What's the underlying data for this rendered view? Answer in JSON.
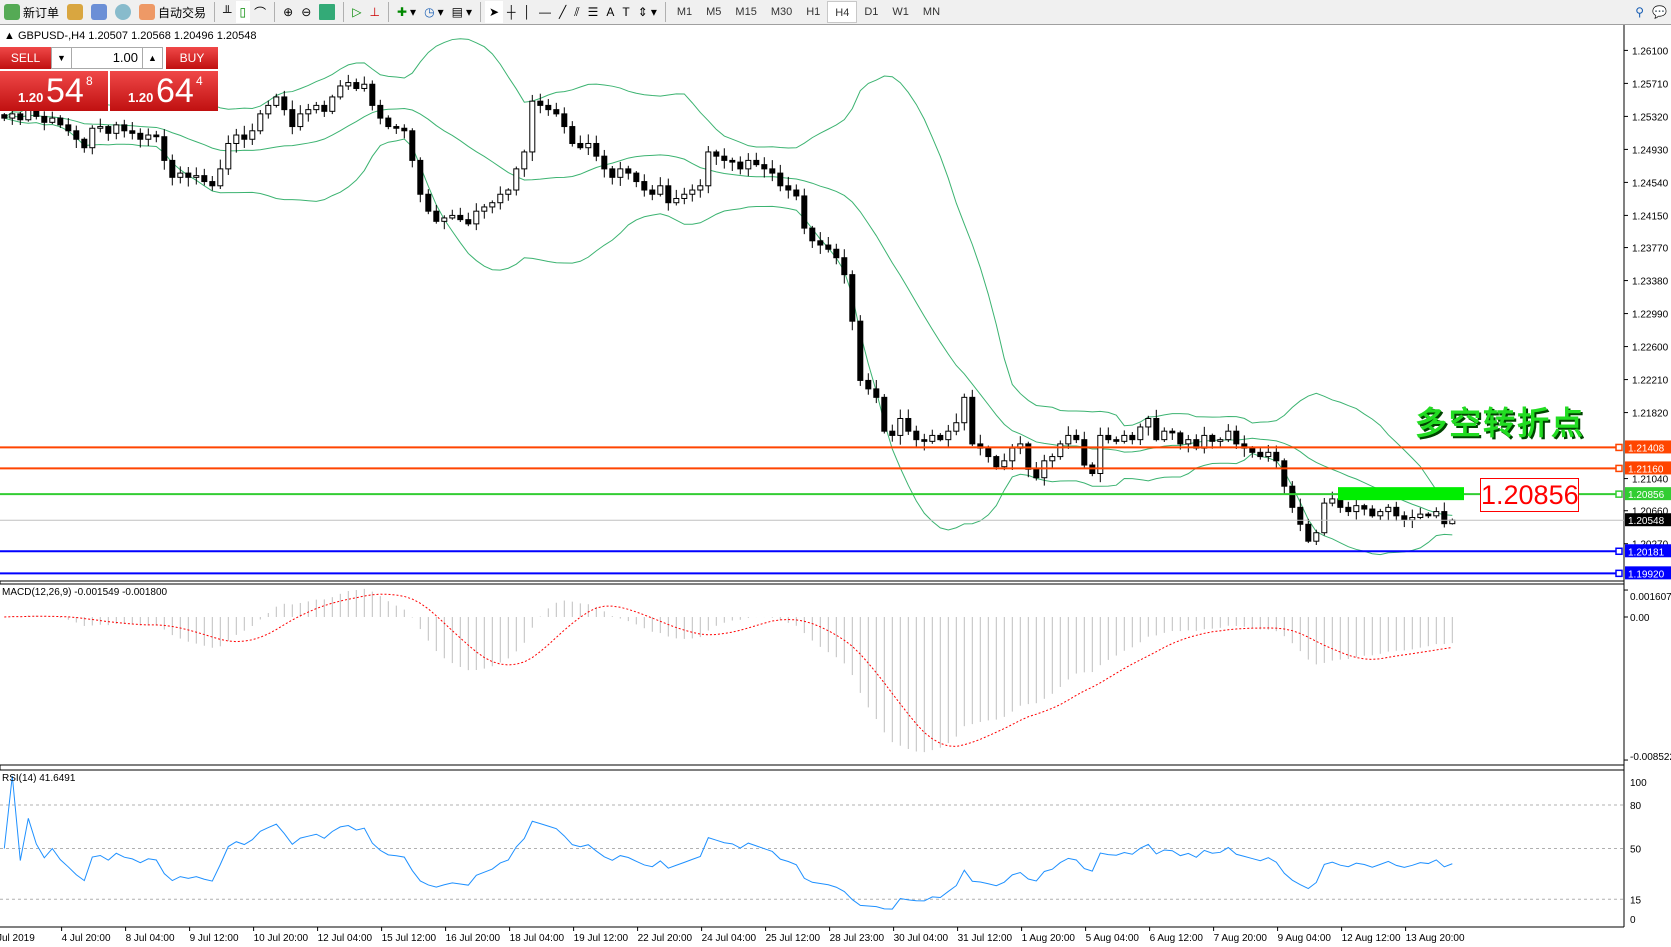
{
  "toolbar": {
    "new_order": "新订单",
    "auto_trading": "自动交易",
    "timeframes": [
      "M1",
      "M5",
      "M15",
      "M30",
      "H1",
      "H4",
      "D1",
      "W1",
      "MN"
    ],
    "selected_timeframe": "H4"
  },
  "header": {
    "symbol": "GBPUSD-,H4",
    "ohlc": "1.20507 1.20568 1.20496 1.20548"
  },
  "trade_panel": {
    "sell_label": "SELL",
    "buy_label": "BUY",
    "lots": "1.00",
    "sell_prefix": "1.20",
    "sell_big": "54",
    "sell_sup": "8",
    "buy_prefix": "1.20",
    "buy_big": "64",
    "buy_sup": "4"
  },
  "annotation": {
    "text": "多空转折点",
    "price_label": "1.20856"
  },
  "colors": {
    "bands": "#3cb371",
    "resistance": "#ff4500",
    "pivot": "#32cd32",
    "support": "#0000ff",
    "rsi": "#1e90ff",
    "macd_signal": "#ff0000",
    "macd_hist": "#c0c0c0"
  },
  "chart_data": [
    {
      "type": "candlestick",
      "symbol": "GBPUSD-",
      "timeframe": "H4",
      "price_axis_ticks": [
        "1.26100",
        "1.25710",
        "1.25320",
        "1.24930",
        "1.24540",
        "1.24150",
        "1.23770",
        "1.23380",
        "1.22990",
        "1.22600",
        "1.22210",
        "1.21820",
        "1.21040",
        "1.20660",
        "1.20270"
      ],
      "time_axis_ticks": [
        "Jul 2019",
        "4 Jul 20:00",
        "8 Jul 04:00",
        "9 Jul 12:00",
        "10 Jul 20:00",
        "12 Jul 04:00",
        "15 Jul 12:00",
        "16 Jul 20:00",
        "18 Jul 04:00",
        "19 Jul 12:00",
        "22 Jul 20:00",
        "24 Jul 04:00",
        "25 Jul 12:00",
        "28 Jul 23:00",
        "30 Jul 04:00",
        "31 Jul 12:00",
        "1 Aug 20:00",
        "5 Aug 04:00",
        "6 Aug 12:00",
        "7 Aug 20:00",
        "9 Aug 04:00",
        "12 Aug 12:00",
        "13 Aug 20:00"
      ],
      "indicators": "Bollinger Bands(20,2)",
      "closes": [
        1.253,
        1.2535,
        1.2528,
        1.254,
        1.2532,
        1.2525,
        1.253,
        1.2522,
        1.2515,
        1.2505,
        1.2495,
        1.2518,
        1.252,
        1.2512,
        1.2522,
        1.2515,
        1.2512,
        1.2505,
        1.251,
        1.2508,
        1.248,
        1.246,
        1.2465,
        1.246,
        1.2462,
        1.2455,
        1.245,
        1.247,
        1.25,
        1.251,
        1.2505,
        1.2515,
        1.2535,
        1.2545,
        1.2555,
        1.254,
        1.252,
        1.2535,
        1.254,
        1.2545,
        1.2538,
        1.2555,
        1.2568,
        1.2572,
        1.2565,
        1.257,
        1.2545,
        1.253,
        1.252,
        1.2518,
        1.2515,
        1.248,
        1.244,
        1.242,
        1.2408,
        1.2412,
        1.2415,
        1.241,
        1.2405,
        1.242,
        1.2425,
        1.243,
        1.244,
        1.2445,
        1.247,
        1.249,
        1.255,
        1.2545,
        1.254,
        1.2535,
        1.252,
        1.25,
        1.2495,
        1.25,
        1.2485,
        1.247,
        1.246,
        1.247,
        1.2465,
        1.2455,
        1.2445,
        1.244,
        1.245,
        1.243,
        1.2435,
        1.244,
        1.2445,
        1.245,
        1.249,
        1.2485,
        1.248,
        1.2478,
        1.247,
        1.248,
        1.2475,
        1.247,
        1.2465,
        1.245,
        1.2445,
        1.2438,
        1.24,
        1.2385,
        1.238,
        1.2375,
        1.2365,
        1.2345,
        1.229,
        1.222,
        1.221,
        1.22,
        1.216,
        1.2155,
        1.2175,
        1.216,
        1.215,
        1.2148,
        1.2155,
        1.215,
        1.216,
        1.217,
        1.22,
        1.2145,
        1.214,
        1.213,
        1.2118,
        1.2125,
        1.214,
        1.2145,
        1.2115,
        1.2105,
        1.2125,
        1.213,
        1.2145,
        1.2155,
        1.215,
        1.212,
        1.211,
        1.2155,
        1.215,
        1.2148,
        1.2155,
        1.215,
        1.2165,
        1.2175,
        1.215,
        1.216,
        1.2158,
        1.2145,
        1.215,
        1.214,
        1.2155,
        1.2148,
        1.215,
        1.216,
        1.2145,
        1.214,
        1.2135,
        1.213,
        1.2135,
        1.2125,
        1.2095,
        1.207,
        1.205,
        1.203,
        1.204,
        1.2075,
        1.208,
        1.207,
        1.2065,
        1.2072,
        1.2068,
        1.206,
        1.2065,
        1.207,
        1.206,
        1.2055,
        1.2058,
        1.2062,
        1.206,
        1.2065,
        1.20507,
        1.20548
      ],
      "horizontal_lines": [
        {
          "price": "1.21408",
          "role": "resistance"
        },
        {
          "price": "1.21160",
          "role": "resistance"
        },
        {
          "price": "1.20856",
          "role": "pivot"
        },
        {
          "price": "1.20181",
          "role": "support"
        },
        {
          "price": "1.19920",
          "role": "support"
        }
      ],
      "bid": "1.20548"
    },
    {
      "type": "bar",
      "name": "MACD(12,26,9)",
      "label": "MACD(12,26,9) -0.001549 -0.001800",
      "axis_ticks": [
        "0.001607",
        "0.00",
        "-0.008522"
      ]
    },
    {
      "type": "line",
      "name": "RSI(14)",
      "label": "RSI(14) 41.6491",
      "axis_ticks": [
        "100",
        "80",
        "50",
        "15",
        "0"
      ],
      "levels": [
        80,
        50,
        15
      ]
    }
  ]
}
